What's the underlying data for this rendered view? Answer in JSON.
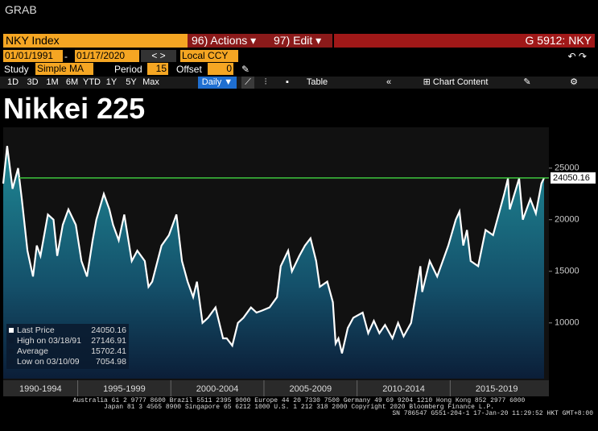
{
  "window": {
    "title": "GRAB"
  },
  "toolbar": {
    "security": "NKY Index",
    "actions_num": "96)",
    "actions": "Actions",
    "edit_num": "97)",
    "edit": "Edit",
    "page_code": "G 5912: NKY"
  },
  "range": {
    "start": "01/01/1991",
    "end": "01/17/2020",
    "currency": "Local CCY"
  },
  "study": {
    "label": "Study",
    "value": "Simple MA",
    "period_label": "Period",
    "period": "15",
    "offset_label": "Offset",
    "offset": "0"
  },
  "buttons": [
    "1D",
    "3D",
    "1M",
    "6M",
    "YTD",
    "1Y",
    "5Y",
    "Max"
  ],
  "frequency": "Daily",
  "table_button": "Table",
  "chart_content": "Chart Content",
  "footer": {
    "line1": "Australia 61 2 9777 8600 Brazil 5511 2395 9000 Europe 44 20 7330 7500 Germany 49 69 9204 1210 Hong Kong 852 2977 6000",
    "line2": "Japan 81 3 4565 8900 Singapore 65 6212 1000 U.S. 1 212 318 2000",
    "line3": "Copyright 2020 Bloomberg Finance L.P.",
    "line4": "SN 786547 G551-204-1 17-Jan-20 11:29:52 HKT GMT+8:00"
  },
  "chart_data": {
    "type": "line",
    "title": "Nikkei 225",
    "x": [
      1991.0,
      1991.21,
      1991.5,
      1991.8,
      1992.0,
      1992.3,
      1992.6,
      1992.8,
      1993.0,
      1993.4,
      1993.7,
      1993.9,
      1994.2,
      1994.5,
      1994.9,
      1995.2,
      1995.5,
      1995.8,
      1996.0,
      1996.4,
      1996.7,
      1996.9,
      1997.2,
      1997.5,
      1997.9,
      1998.2,
      1998.6,
      1998.8,
      1999.0,
      1999.5,
      1999.9,
      2000.3,
      2000.6,
      2000.9,
      2001.2,
      2001.4,
      2001.7,
      2002.0,
      2002.4,
      2002.8,
      2003.0,
      2003.3,
      2003.6,
      2003.9,
      2004.3,
      2004.6,
      2004.9,
      2005.3,
      2005.7,
      2005.9,
      2006.3,
      2006.5,
      2006.9,
      2007.2,
      2007.5,
      2007.8,
      2008.0,
      2008.4,
      2008.7,
      2008.85,
      2009.0,
      2009.19,
      2009.5,
      2009.8,
      2010.3,
      2010.6,
      2010.9,
      2011.2,
      2011.5,
      2011.9,
      2012.2,
      2012.5,
      2012.9,
      2013.4,
      2013.5,
      2013.9,
      2014.3,
      2014.9,
      2015.3,
      2015.5,
      2015.7,
      2015.9,
      2016.1,
      2016.5,
      2016.9,
      2017.3,
      2017.9,
      2018.1,
      2018.2,
      2018.7,
      2018.9,
      2019.0,
      2019.3,
      2019.6,
      2019.9,
      2020.04
    ],
    "series": [
      {
        "name": "Last Price",
        "color": "#ffffff",
        "values": [
          23500,
          27146.91,
          23000,
          25000,
          22000,
          17000,
          14500,
          17500,
          16500,
          20500,
          20000,
          16500,
          19500,
          21000,
          19500,
          16000,
          14500,
          18000,
          20000,
          22500,
          21000,
          19500,
          18000,
          20500,
          16000,
          17000,
          16000,
          13500,
          14000,
          17500,
          18500,
          20500,
          16000,
          14000,
          12500,
          14000,
          10000,
          10500,
          11500,
          8500,
          8500,
          7800,
          10000,
          10500,
          11500,
          11000,
          11200,
          11500,
          12500,
          15500,
          17000,
          15000,
          16500,
          17500,
          18200,
          16000,
          13500,
          14000,
          12000,
          8000,
          8500,
          7054.98,
          9500,
          10500,
          11000,
          9000,
          10200,
          9000,
          9800,
          8500,
          10000,
          8700,
          10000,
          15500,
          13000,
          16000,
          14500,
          17500,
          20000,
          20800,
          17500,
          19000,
          16000,
          15500,
          19000,
          18500,
          22500,
          24000,
          21000,
          24000,
          20000,
          20500,
          22000,
          20600,
          23500,
          24050.16
        ]
      }
    ],
    "xlim": [
      1991.0,
      2020.3
    ],
    "xticks": [
      {
        "value": 1990,
        "label": "1990-1994"
      },
      {
        "value": 1995,
        "label": "1995-1999"
      },
      {
        "value": 2000,
        "label": "2000-2004"
      },
      {
        "value": 2005,
        "label": "2005-2009"
      },
      {
        "value": 2010,
        "label": "2010-2014"
      },
      {
        "value": 2015,
        "label": "2015-2019"
      }
    ],
    "ylim": [
      4600,
      28800
    ],
    "yticks": [
      10000,
      15000,
      20000,
      25000
    ],
    "stats": [
      {
        "label": "Last Price",
        "value": 24050.16
      },
      {
        "label": "High on 03/18/91",
        "value": 27146.91
      },
      {
        "label": "Average",
        "value": 15702.41
      },
      {
        "label": "Low on 03/10/09",
        "value": 7054.98
      }
    ],
    "last_price_color": "#3ec63e",
    "area": true
  }
}
